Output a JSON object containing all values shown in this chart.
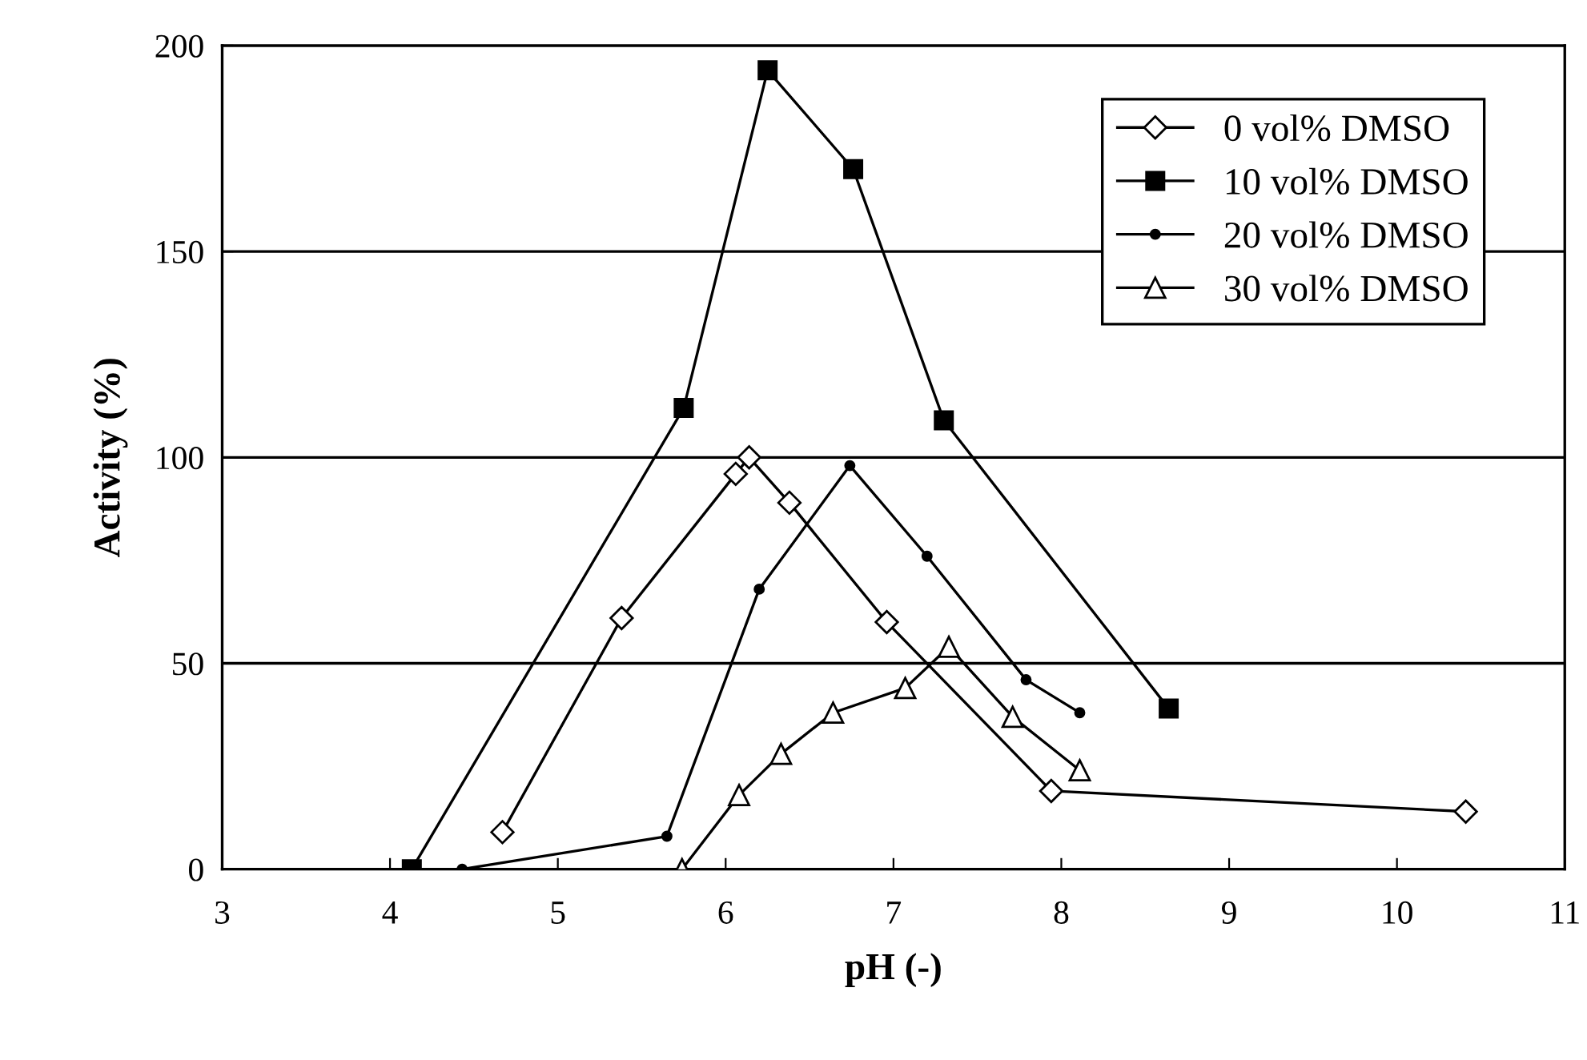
{
  "chart_data": {
    "type": "line",
    "xlabel": "pH (-)",
    "ylabel": "Activity (%)",
    "xlim": [
      3,
      11
    ],
    "xticks": [
      3,
      4,
      5,
      6,
      7,
      8,
      9,
      10,
      11
    ],
    "ylim": [
      0,
      200
    ],
    "yticks": [
      0,
      50,
      100,
      150,
      200
    ],
    "grid": "y",
    "legend": "top right",
    "series": [
      {
        "name": "0 vol% DMSO",
        "color": "#000000",
        "marker": "diamond",
        "x": [
          4.67,
          5.38,
          6.06,
          6.14,
          6.38,
          6.96,
          7.94,
          10.41
        ],
        "values": [
          9,
          61,
          96,
          100,
          89,
          60,
          19,
          14
        ]
      },
      {
        "name": "10 vol% DMSO",
        "color": "#000000",
        "marker": "square",
        "x": [
          4.13,
          5.75,
          6.25,
          6.76,
          7.3,
          8.64
        ],
        "values": [
          0,
          112,
          194,
          170,
          109,
          39
        ]
      },
      {
        "name": "20 vol% DMSO",
        "color": "#000000",
        "marker": "circle",
        "x": [
          4.43,
          5.65,
          6.2,
          6.74,
          7.2,
          7.79,
          8.11
        ],
        "values": [
          0,
          8,
          68,
          98,
          76,
          46,
          38
        ]
      },
      {
        "name": "30 vol% DMSO",
        "color": "#000000",
        "marker": "triangle",
        "x": [
          5.74,
          6.08,
          6.33,
          6.64,
          7.07,
          7.33,
          7.71,
          8.11
        ],
        "values": [
          0,
          18,
          28,
          38,
          44,
          54,
          37,
          24
        ]
      }
    ]
  }
}
